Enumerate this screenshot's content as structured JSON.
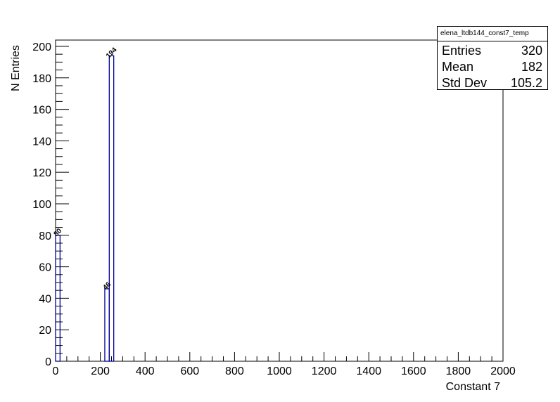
{
  "chart_data": {
    "type": "bar",
    "histogram_name": "elena_ltdb144_const7_temp",
    "xlabel": "Constant 7",
    "ylabel": "N Entries",
    "xlim": [
      0,
      2000
    ],
    "ylim": [
      0,
      204
    ],
    "x_ticks": [
      0,
      200,
      400,
      600,
      800,
      1000,
      1200,
      1400,
      1600,
      1800,
      2000
    ],
    "y_ticks": [
      0,
      20,
      40,
      60,
      80,
      100,
      120,
      140,
      160,
      180,
      200
    ],
    "bin_width": 20,
    "bins": [
      {
        "x_low": 0,
        "x_high": 20,
        "value": 80,
        "label": "80"
      },
      {
        "x_low": 220,
        "x_high": 240,
        "value": 46,
        "label": "46"
      },
      {
        "x_low": 240,
        "x_high": 260,
        "value": 194,
        "label": "194"
      }
    ],
    "line_color": "#000099",
    "grid": false,
    "legend": "none"
  },
  "stats": {
    "title": "elena_ltdb144_const7_temp",
    "rows": [
      {
        "key": "Entries",
        "value": "320"
      },
      {
        "key": "Mean",
        "value": "182"
      },
      {
        "key": "Std Dev",
        "value": "105.2"
      }
    ]
  }
}
